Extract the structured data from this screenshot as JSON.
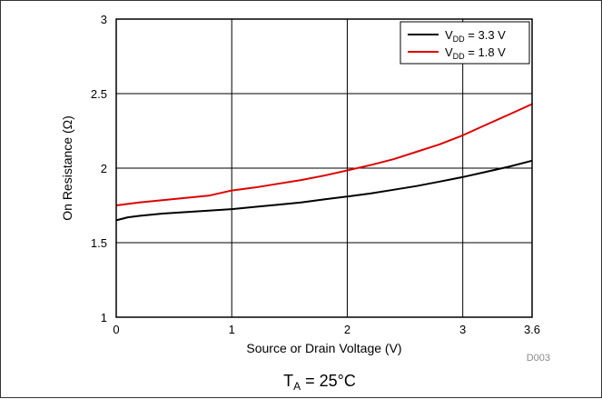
{
  "chart_data": {
    "type": "line",
    "title": "",
    "xlabel": "Source or Drain Voltage (V)",
    "ylabel": "On Resistance (Ω)",
    "xlim": [
      0,
      3.6
    ],
    "ylim": [
      1,
      3
    ],
    "xticks": [
      0,
      1,
      2,
      3,
      3.6
    ],
    "xtick_labels": [
      "0",
      "1",
      "2",
      "3",
      "3.6"
    ],
    "yticks": [
      1,
      1.5,
      2,
      2.5,
      3
    ],
    "ytick_labels": [
      "1",
      "1.5",
      "2",
      "2.5",
      "3"
    ],
    "grid": true,
    "legend_position": "top-right",
    "series": [
      {
        "name_main": "V",
        "name_sub": "DD",
        "name_rest": " = 3.3 V",
        "color": "#000000",
        "x": [
          0,
          0.1,
          0.2,
          0.4,
          0.6,
          0.8,
          1.0,
          1.2,
          1.4,
          1.6,
          1.8,
          2.0,
          2.2,
          2.4,
          2.6,
          2.8,
          3.0,
          3.2,
          3.4,
          3.6
        ],
        "y": [
          1.65,
          1.67,
          1.68,
          1.695,
          1.705,
          1.715,
          1.725,
          1.74,
          1.755,
          1.77,
          1.79,
          1.81,
          1.83,
          1.855,
          1.88,
          1.91,
          1.94,
          1.975,
          2.01,
          2.05
        ]
      },
      {
        "name_main": "V",
        "name_sub": "DD",
        "name_rest": " = 1.8 V",
        "color": "#e00000",
        "x": [
          0,
          0.2,
          0.4,
          0.6,
          0.8,
          1.0,
          1.2,
          1.4,
          1.6,
          1.8,
          2.0,
          2.2,
          2.4,
          2.6,
          2.8,
          3.0,
          3.2,
          3.4,
          3.6
        ],
        "y": [
          1.75,
          1.77,
          1.785,
          1.8,
          1.815,
          1.85,
          1.87,
          1.895,
          1.92,
          1.95,
          1.985,
          2.02,
          2.06,
          2.11,
          2.16,
          2.22,
          2.29,
          2.36,
          2.43
        ]
      }
    ],
    "annotations": {
      "figure_code": "D003",
      "condition_main": "T",
      "condition_sub": "A",
      "condition_rest": " = 25°C"
    }
  }
}
